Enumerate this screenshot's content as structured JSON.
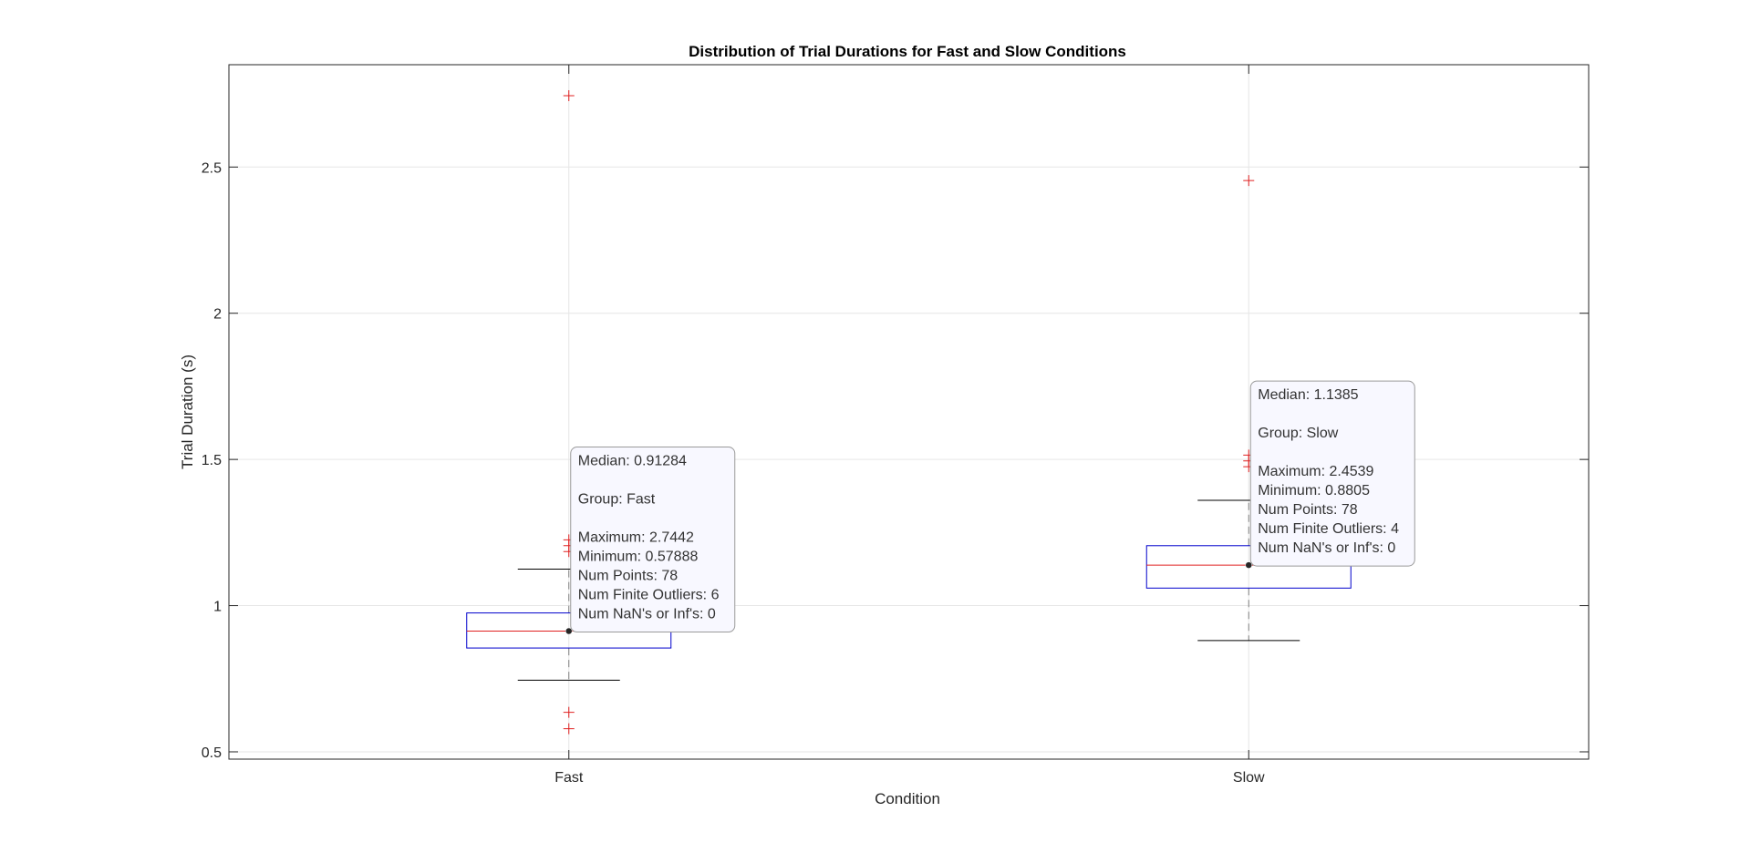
{
  "chart_data": {
    "type": "boxplot",
    "title": "Distribution of Trial Durations for Fast and Slow Conditions",
    "xlabel": "Condition",
    "ylabel": "Trial Duration (s)",
    "ylim": [
      0.475,
      2.85
    ],
    "yticks": [
      0.5,
      1,
      1.5,
      2,
      2.5
    ],
    "ytick_labels": [
      "0.5",
      "1",
      "1.5",
      "2",
      "2.5"
    ],
    "grid": true,
    "categories": [
      "Fast",
      "Slow"
    ],
    "groups": [
      {
        "name": "Fast",
        "median": 0.91284,
        "q1": 0.855,
        "q3": 0.975,
        "whisker_low": 0.745,
        "whisker_high": 1.125,
        "maximum": 2.7442,
        "minimum": 0.57888,
        "num_points": 78,
        "num_finite_outliers": 6,
        "num_nan_inf": 0,
        "outliers": [
          2.7442,
          1.225,
          1.205,
          1.185,
          0.635,
          0.57888
        ]
      },
      {
        "name": "Slow",
        "median": 1.1385,
        "q1": 1.06,
        "q3": 1.205,
        "whisker_low": 0.8805,
        "whisker_high": 1.36,
        "maximum": 2.4539,
        "minimum": 0.8805,
        "num_points": 78,
        "num_finite_outliers": 4,
        "num_nan_inf": 0,
        "outliers": [
          2.4539,
          1.515,
          1.495,
          1.475
        ]
      }
    ],
    "datatips": [
      {
        "group_index": 0,
        "lines": [
          "Median: 0.91284",
          "",
          "Group: Fast",
          "",
          "Maximum: 2.7442",
          "Minimum: 0.57888",
          "Num Points: 78",
          "Num Finite Outliers: 6",
          "Num NaN's or Inf's: 0"
        ]
      },
      {
        "group_index": 1,
        "lines": [
          "Median: 1.1385",
          "",
          "Group: Slow",
          "",
          "Maximum: 2.4539",
          "Minimum: 0.8805",
          "Num Points: 78",
          "Num Finite Outliers: 4",
          "Num NaN's or Inf's: 0"
        ]
      }
    ],
    "colors": {
      "box": "#0000cc",
      "median": "#e02020",
      "whisker": "#000000",
      "whisker_stem": "#808080",
      "outlier": "#e02020",
      "grid": "#e6e6e6",
      "axes": "#262626",
      "tip_bg": "#f8f8ff",
      "tip_border": "#9a9a9a"
    }
  }
}
